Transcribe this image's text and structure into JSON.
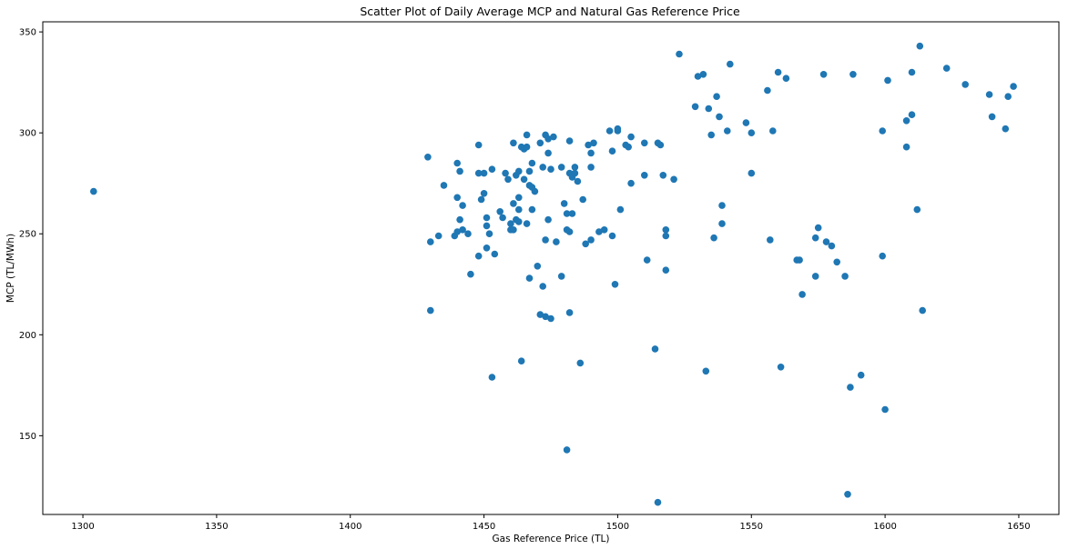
{
  "chart_data": {
    "type": "scatter",
    "title": "Scatter Plot of Daily Average MCP and Natural Gas Reference Price",
    "xlabel": "Gas Reference Price (TL)",
    "ylabel": "MCP (TL/MWh)",
    "xlim": [
      1285,
      1665
    ],
    "ylim": [
      111,
      355
    ],
    "xticks": [
      1300,
      1350,
      1400,
      1450,
      1500,
      1550,
      1600,
      1650
    ],
    "yticks": [
      150,
      200,
      250,
      300,
      350
    ],
    "grid": false,
    "color": "#1f77b4",
    "points": [
      [
        1304,
        271
      ],
      [
        1429,
        288
      ],
      [
        1430,
        212
      ],
      [
        1430,
        246
      ],
      [
        1433,
        249
      ],
      [
        1435,
        274
      ],
      [
        1439,
        249
      ],
      [
        1440,
        268
      ],
      [
        1440,
        285
      ],
      [
        1440,
        251
      ],
      [
        1441,
        257
      ],
      [
        1441,
        281
      ],
      [
        1442,
        252
      ],
      [
        1442,
        264
      ],
      [
        1444,
        250
      ],
      [
        1445,
        230
      ],
      [
        1448,
        280
      ],
      [
        1448,
        294
      ],
      [
        1448,
        239
      ],
      [
        1449,
        267
      ],
      [
        1450,
        270
      ],
      [
        1450,
        280
      ],
      [
        1451,
        254
      ],
      [
        1451,
        258
      ],
      [
        1451,
        243
      ],
      [
        1452,
        250
      ],
      [
        1453,
        179
      ],
      [
        1453,
        282
      ],
      [
        1454,
        240
      ],
      [
        1456,
        261
      ],
      [
        1457,
        258
      ],
      [
        1458,
        280
      ],
      [
        1459,
        277
      ],
      [
        1460,
        252
      ],
      [
        1460,
        255
      ],
      [
        1461,
        265
      ],
      [
        1461,
        252
      ],
      [
        1462,
        257
      ],
      [
        1461,
        295
      ],
      [
        1462,
        279
      ],
      [
        1463,
        281
      ],
      [
        1463,
        262
      ],
      [
        1463,
        268
      ],
      [
        1463,
        256
      ],
      [
        1464,
        187
      ],
      [
        1464,
        293
      ],
      [
        1465,
        277
      ],
      [
        1465,
        292
      ],
      [
        1466,
        293
      ],
      [
        1466,
        299
      ],
      [
        1466,
        255
      ],
      [
        1467,
        274
      ],
      [
        1467,
        281
      ],
      [
        1467,
        228
      ],
      [
        1468,
        285
      ],
      [
        1468,
        273
      ],
      [
        1468,
        262
      ],
      [
        1469,
        271
      ],
      [
        1470,
        234
      ],
      [
        1471,
        295
      ],
      [
        1471,
        210
      ],
      [
        1472,
        224
      ],
      [
        1472,
        283
      ],
      [
        1473,
        209
      ],
      [
        1473,
        299
      ],
      [
        1473,
        247
      ],
      [
        1474,
        290
      ],
      [
        1474,
        257
      ],
      [
        1474,
        297
      ],
      [
        1475,
        282
      ],
      [
        1475,
        208
      ],
      [
        1476,
        298
      ],
      [
        1477,
        246
      ],
      [
        1479,
        229
      ],
      [
        1479,
        283
      ],
      [
        1480,
        265
      ],
      [
        1481,
        260
      ],
      [
        1481,
        252
      ],
      [
        1481,
        143
      ],
      [
        1482,
        251
      ],
      [
        1482,
        280
      ],
      [
        1482,
        296
      ],
      [
        1482,
        211
      ],
      [
        1483,
        260
      ],
      [
        1483,
        278
      ],
      [
        1484,
        280
      ],
      [
        1484,
        283
      ],
      [
        1485,
        276
      ],
      [
        1486,
        186
      ],
      [
        1487,
        267
      ],
      [
        1488,
        245
      ],
      [
        1489,
        294
      ],
      [
        1490,
        283
      ],
      [
        1490,
        290
      ],
      [
        1490,
        247
      ],
      [
        1491,
        295
      ],
      [
        1493,
        251
      ],
      [
        1495,
        252
      ],
      [
        1497,
        301
      ],
      [
        1498,
        249
      ],
      [
        1498,
        291
      ],
      [
        1499,
        225
      ],
      [
        1500,
        301
      ],
      [
        1500,
        302
      ],
      [
        1501,
        262
      ],
      [
        1503,
        294
      ],
      [
        1504,
        293
      ],
      [
        1505,
        275
      ],
      [
        1505,
        298
      ],
      [
        1510,
        295
      ],
      [
        1510,
        279
      ],
      [
        1511,
        237
      ],
      [
        1514,
        193
      ],
      [
        1515,
        295
      ],
      [
        1515,
        117
      ],
      [
        1516,
        294
      ],
      [
        1517,
        279
      ],
      [
        1518,
        249
      ],
      [
        1518,
        252
      ],
      [
        1518,
        232
      ],
      [
        1521,
        277
      ],
      [
        1523,
        339
      ],
      [
        1529,
        313
      ],
      [
        1530,
        328
      ],
      [
        1532,
        329
      ],
      [
        1533,
        182
      ],
      [
        1534,
        312
      ],
      [
        1535,
        299
      ],
      [
        1536,
        248
      ],
      [
        1537,
        318
      ],
      [
        1538,
        308
      ],
      [
        1539,
        264
      ],
      [
        1539,
        255
      ],
      [
        1541,
        301
      ],
      [
        1542,
        334
      ],
      [
        1548,
        305
      ],
      [
        1550,
        300
      ],
      [
        1550,
        280
      ],
      [
        1556,
        321
      ],
      [
        1557,
        247
      ],
      [
        1558,
        301
      ],
      [
        1560,
        330
      ],
      [
        1561,
        184
      ],
      [
        1563,
        327
      ],
      [
        1567,
        237
      ],
      [
        1568,
        237
      ],
      [
        1569,
        220
      ],
      [
        1574,
        229
      ],
      [
        1574,
        248
      ],
      [
        1575,
        253
      ],
      [
        1577,
        329
      ],
      [
        1578,
        246
      ],
      [
        1580,
        244
      ],
      [
        1582,
        236
      ],
      [
        1585,
        229
      ],
      [
        1586,
        121
      ],
      [
        1587,
        174
      ],
      [
        1588,
        329
      ],
      [
        1591,
        180
      ],
      [
        1599,
        239
      ],
      [
        1599,
        301
      ],
      [
        1600,
        163
      ],
      [
        1601,
        326
      ],
      [
        1608,
        306
      ],
      [
        1608,
        293
      ],
      [
        1610,
        330
      ],
      [
        1610,
        309
      ],
      [
        1612,
        262
      ],
      [
        1613,
        343
      ],
      [
        1614,
        212
      ],
      [
        1623,
        332
      ],
      [
        1630,
        324
      ],
      [
        1639,
        319
      ],
      [
        1640,
        308
      ],
      [
        1645,
        302
      ],
      [
        1646,
        318
      ],
      [
        1648,
        323
      ]
    ]
  }
}
